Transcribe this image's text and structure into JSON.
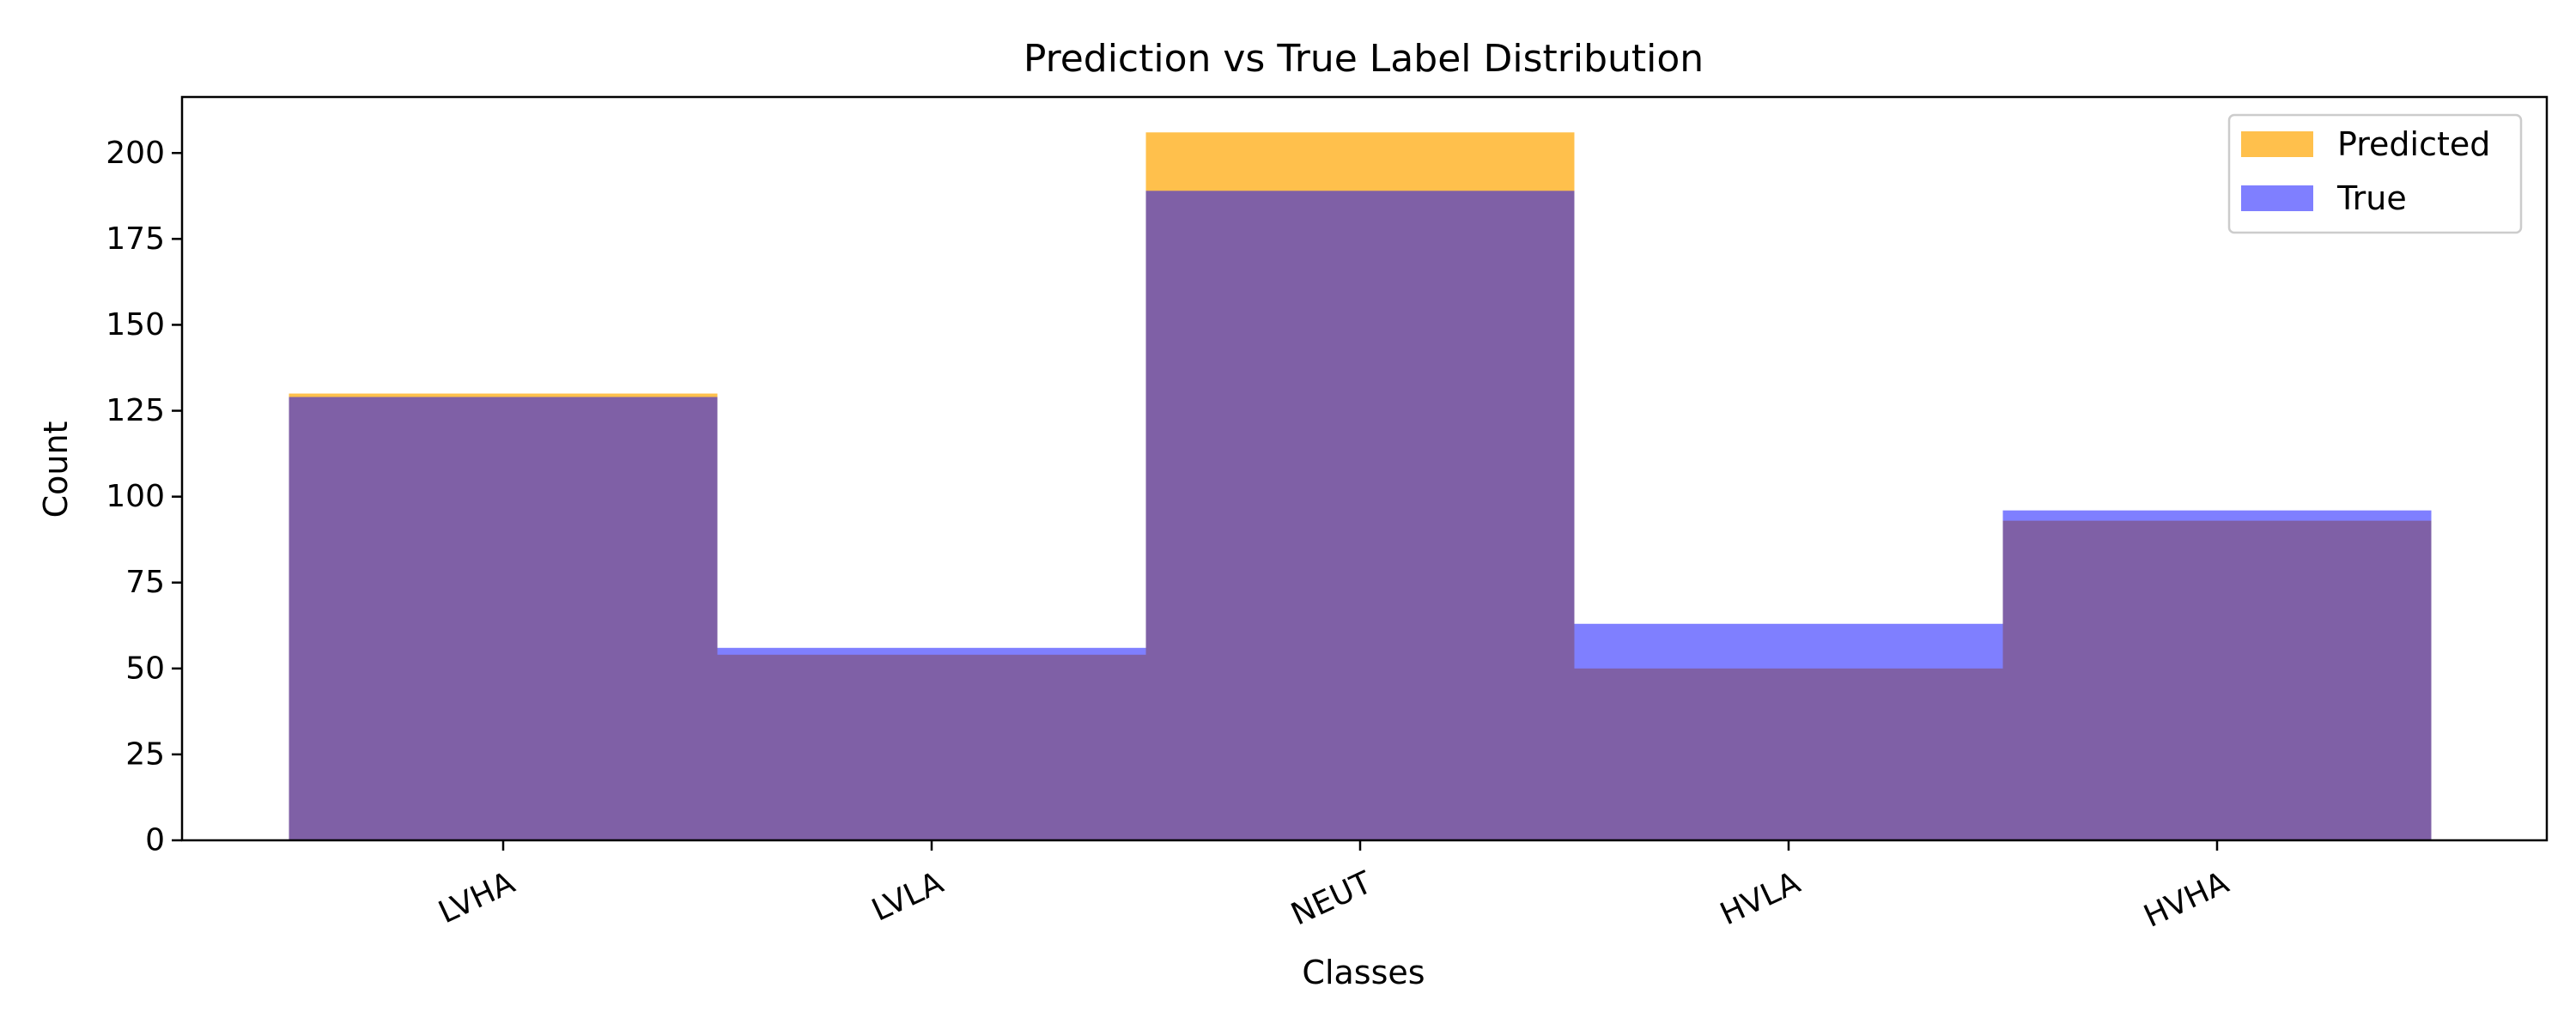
{
  "chart_data": {
    "type": "bar",
    "title": "Prediction vs True Label Distribution",
    "xlabel": "Classes",
    "ylabel": "Count",
    "categories": [
      "LVHA",
      "LVLA",
      "NEUT",
      "HVLA",
      "HVHA"
    ],
    "ylim": [
      0,
      216.3
    ],
    "yticks": [
      0,
      25,
      50,
      75,
      100,
      125,
      150,
      175,
      200
    ],
    "grid": false,
    "legend_position": "top-right",
    "overlay": true,
    "series": [
      {
        "name": "Predicted",
        "values": [
          130,
          54,
          206,
          50,
          93
        ],
        "color": "#ffa500",
        "opacity": 0.7
      },
      {
        "name": "True",
        "values": [
          129,
          56,
          189,
          63,
          96
        ],
        "color": "#0000ff",
        "opacity": 0.5
      }
    ]
  }
}
